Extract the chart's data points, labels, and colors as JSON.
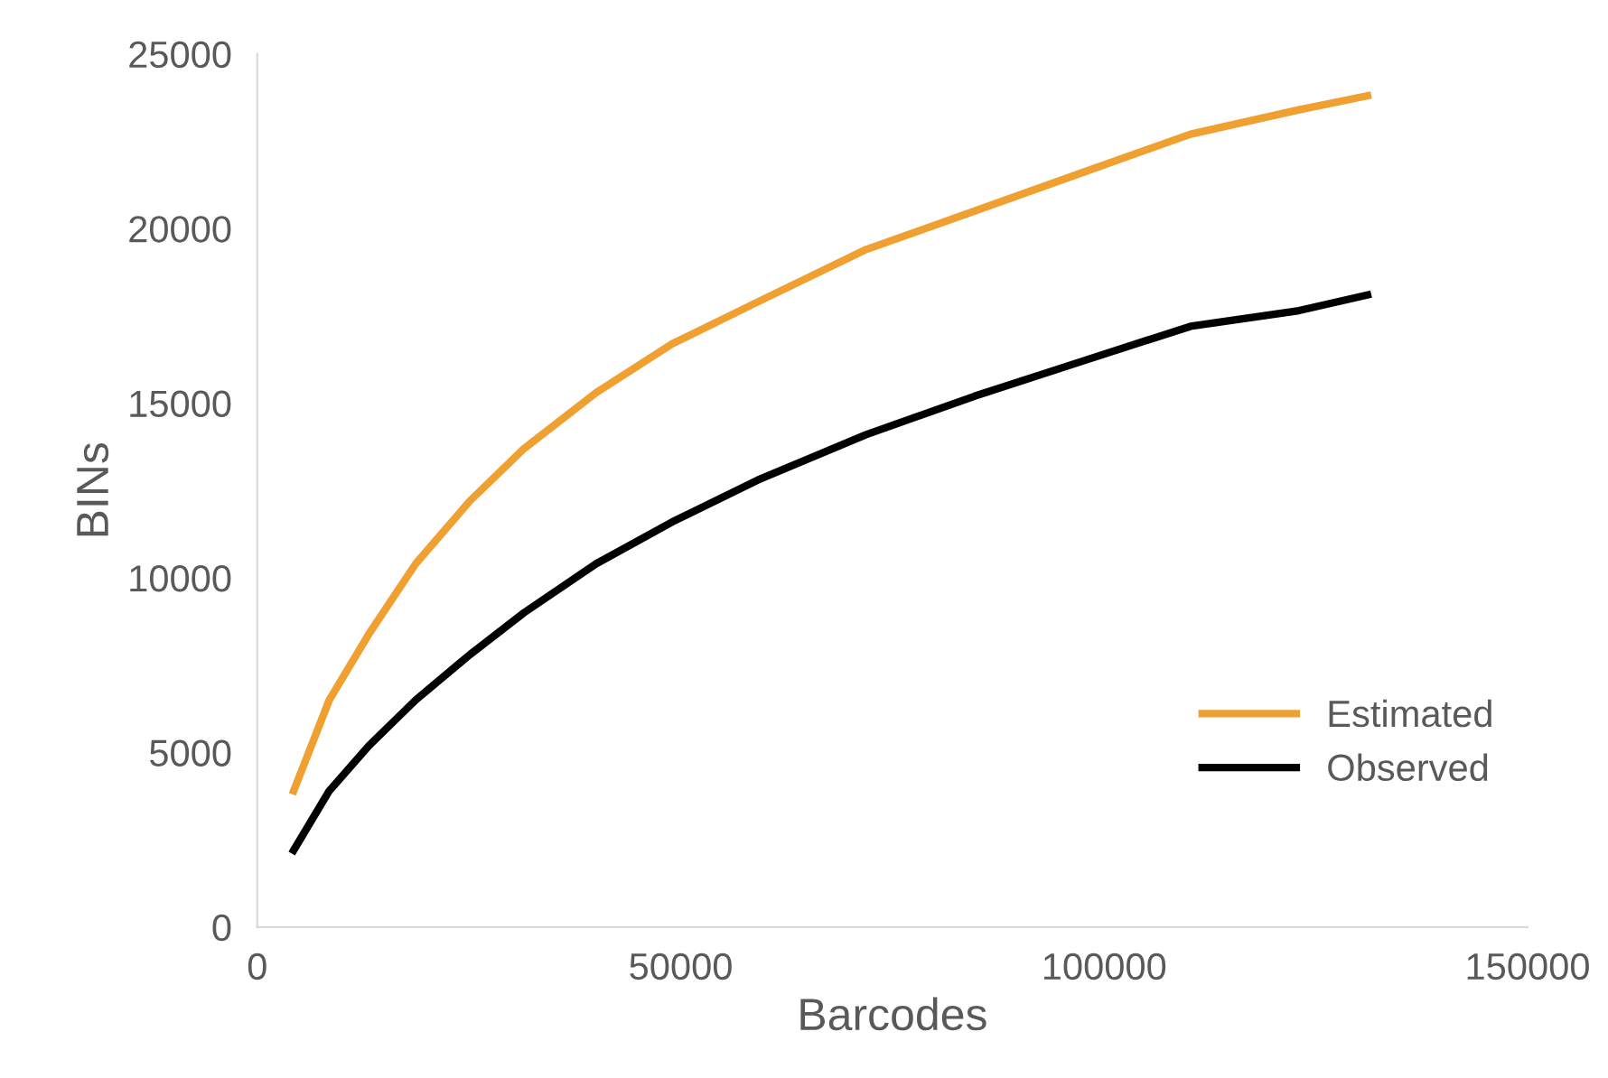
{
  "chart_data": {
    "type": "line",
    "xlabel": "Barcodes",
    "ylabel": "BINs",
    "xlim": [
      0,
      150000
    ],
    "xticks": [
      0,
      50000,
      100000,
      150000
    ],
    "ylim": [
      0,
      25000
    ],
    "yticks": [
      0,
      5000,
      10000,
      15000,
      20000,
      25000
    ],
    "grid": false,
    "legend": "bottom right",
    "marker": "none",
    "line_style": "solid",
    "x": [
      4300,
      8500,
      13200,
      18700,
      25100,
      31500,
      40000,
      49000,
      59100,
      71900,
      84700,
      97400,
      110200,
      123000,
      131100
    ],
    "series": [
      {
        "name": "Estimated",
        "color": "#f0a030",
        "values": [
          3900,
          6500,
          8400,
          10400,
          12200,
          13700,
          15300,
          16700,
          17900,
          19400,
          20500,
          21600,
          22700,
          23400,
          23800
        ]
      },
      {
        "name": "Observed",
        "color": "#000000",
        "values": [
          2200,
          3900,
          5200,
          6500,
          7800,
          9000,
          10400,
          11600,
          12800,
          14100,
          15200,
          16200,
          17200,
          17650,
          18100
        ]
      }
    ]
  }
}
